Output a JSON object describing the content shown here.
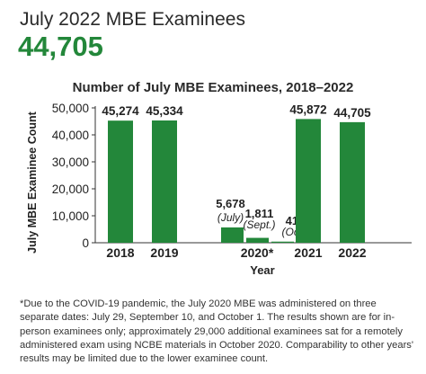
{
  "header": {
    "title": "July 2022 MBE Examinees",
    "total": "44,705",
    "total_color": "#23873a"
  },
  "chart_data": {
    "type": "bar",
    "title": "Number of July MBE Examinees, 2018–2022",
    "xlabel": "Year",
    "ylabel": "July MBE Examinee Count",
    "ylim": [
      0,
      50000
    ],
    "yticks": [
      0,
      10000,
      20000,
      30000,
      40000,
      50000
    ],
    "ytick_labels": [
      "0",
      "10,000",
      "20,000",
      "30,000",
      "40,000",
      "50,000"
    ],
    "grid": false,
    "bar_color": "#23873a",
    "categories": [
      "2018",
      "2019",
      "2020*",
      "2021",
      "2022"
    ],
    "bars": [
      {
        "category": "2018",
        "value": 45274,
        "label": "45,274",
        "sublabel": ""
      },
      {
        "category": "2019",
        "value": 45334,
        "label": "45,334",
        "sublabel": ""
      },
      {
        "category": "2020*",
        "value": 5678,
        "label": "5,678",
        "sublabel": "(July)"
      },
      {
        "category": "2020*",
        "value": 1811,
        "label": "1,811",
        "sublabel": "(Sept.)"
      },
      {
        "category": "2020*",
        "value": 417,
        "label": "417",
        "sublabel": "(Oct.)"
      },
      {
        "category": "2021",
        "value": 45872,
        "label": "45,872",
        "sublabel": ""
      },
      {
        "category": "2022",
        "value": 44705,
        "label": "44,705",
        "sublabel": ""
      }
    ]
  },
  "footnote": "*Due to the COVID-19 pandemic, the July 2020 MBE was administered on three separate dates: July 29, September 10, and October 1. The results shown are for in-person examinees only; approximately 29,000 additional examinees sat for a remotely administered exam using NCBE materials in October 2020. Comparability to other years' results may be limited due to the lower examinee count."
}
